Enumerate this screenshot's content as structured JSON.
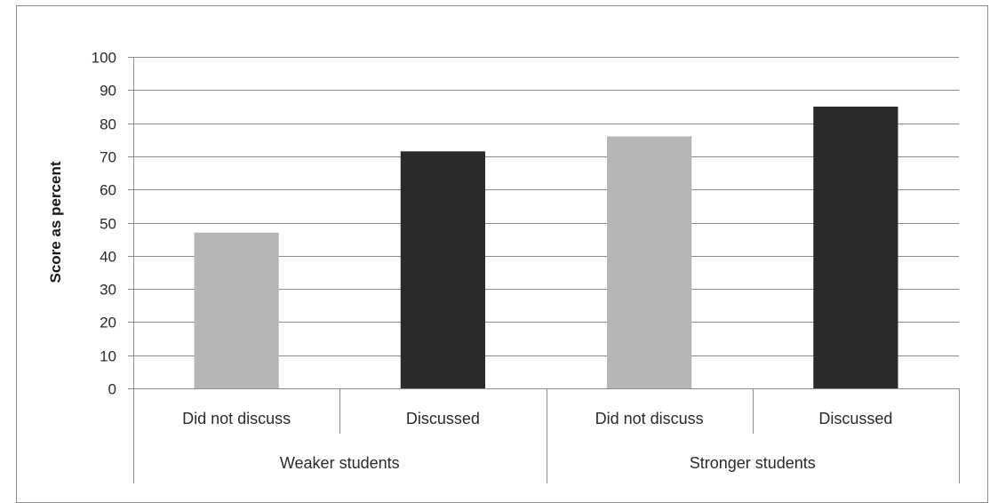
{
  "chart_data": {
    "type": "bar",
    "title": "",
    "xlabel": "",
    "ylabel": "Score as percent",
    "ylim": [
      0,
      100
    ],
    "yticks": [
      "0",
      "10",
      "20",
      "30",
      "40",
      "50",
      "60",
      "70",
      "80",
      "90",
      "100"
    ],
    "grid": true,
    "groups": [
      {
        "label": "Weaker students",
        "categories": [
          "Did not discuss",
          "Discussed"
        ],
        "values": [
          47,
          71.5
        ],
        "colors": [
          "#b6b6b8",
          "#2a2a2a"
        ]
      },
      {
        "label": "Stronger students",
        "categories": [
          "Did not discuss",
          "Discussed"
        ],
        "values": [
          76,
          85
        ],
        "colors": [
          "#b6b6b8",
          "#2a2a2a"
        ]
      }
    ]
  },
  "colors": {
    "light_bar": "#b6b6b8",
    "dark_bar": "#2a2a2a",
    "gridline": "#8c8c8c"
  }
}
